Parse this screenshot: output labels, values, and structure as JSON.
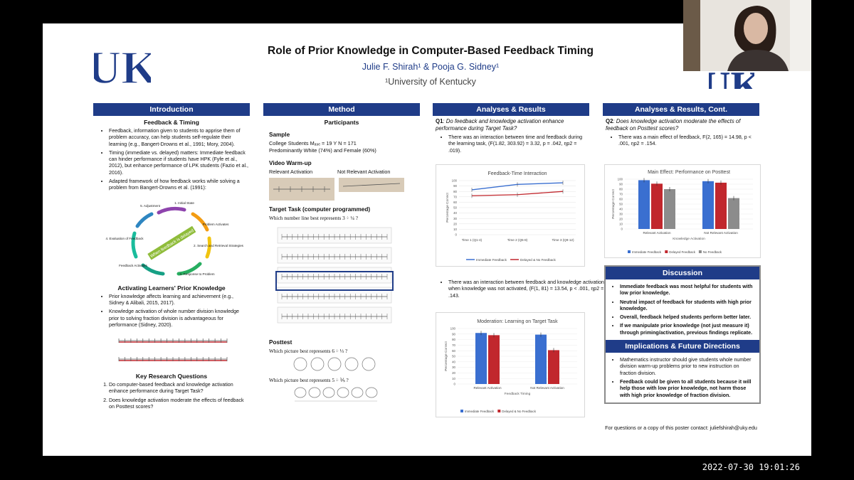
{
  "poster": {
    "title": "Role of Prior Knowledge in Computer-Based Feedback Timing",
    "authors": "Julie F. Shirah¹ & Pooja G. Sidney¹",
    "affiliation": "¹University of Kentucky",
    "logo_text": "UK"
  },
  "intro": {
    "header": "Introduction",
    "sub1": "Feedback & Timing",
    "bullets1": [
      "Feedback, information given to students to apprise them of problem accuracy, can help students self-regulate their learning (e.g., Bangert-Drowns et al., 1991; Mory, 2004).",
      "Timing (immediate vs. delayed) matters: Immediate feedback can hinder performance if students have HPK (Fyfe et al., 2012), but enhance performance of LPK students (Fazio et al., 2016).",
      "Adapted framework of how feedback works while solving a problem from Bangert-Drowns et al. (1991):"
    ],
    "cycle": {
      "steps": [
        "1. Initial State",
        "Problem Activates",
        "2. Search and Retrieval Strategies",
        "3. Response to Problem",
        "Feedback Activates",
        "4. Evaluation of Feedback",
        "5. Adjustment"
      ],
      "center": "When feedback is delayed"
    },
    "sub2": "Activating Learners' Prior Knowledge",
    "bullets2": [
      "Prior knowledge affects learning and achievement (e.g., Sidney & Alibali, 2015, 2017).",
      "Knowledge activation of whole number division knowledge prior to solving fraction division is advantageous for performance (Sidney, 2020)."
    ],
    "sub3": "Key Research Questions",
    "questions": [
      "Do computer-based feedback and knowledge activation enhance performance during Target Task?",
      "Does knowledge activation moderate the effects of feedback on Posttest scores?"
    ]
  },
  "method": {
    "header": "Method",
    "participants": "Participants",
    "sample_h": "Sample",
    "sample1": "College Students Mₐ₉ₑ = 19 Y N = 171",
    "sample2": "Predominantly White (74%) and Female (60%)",
    "video_h": "Video Warm-up",
    "relevant": "Relevant Activation",
    "not_relevant": "Not Relevant Activation",
    "target_h": "Target Task (computer programmed)",
    "target_q": "Which number line best represents 3 ÷ ¼ ?",
    "posttest_h": "Posttest",
    "post_q1": "Which picture best represents 6 ÷ ⅓ ?",
    "post_q2": "Which picture best represents 5 ÷ ⅕ ?"
  },
  "results": {
    "header": "Analyses & Results",
    "q1_label": "Q1",
    "q1": ": Do feedback and knowledge activation enhance performance during Target Task?",
    "r1": "There was an interaction between time and feedback during the learning task, (F(1.82, 303.92) = 3.32, p = .042, ηp2 = .019).",
    "r2": "There was an interaction between feedback and knowledge activation when knowledge was not activated, (F(1, 81) = 13.54, p < .001, ηp2 = .143."
  },
  "results2": {
    "header": "Analyses & Results, Cont.",
    "q2_label": "Q2",
    "q2": ": Does knowledge activation moderate the effects of feedback on Posttest scores?",
    "r1": "There was a main effect of feedback, F(2, 165) = 14.98, p < .001, ηp2 = .154.",
    "discussion_h": "Discussion",
    "discussion": [
      "Immediate feedback was most helpful for students with low prior knowledge.",
      "Neutral impact of feedback for students with high prior knowledge.",
      "Overall, feedback helped students perform better later.",
      "If we manipulate prior knowledge (not just measure it) through priming/activation, previous findings replicate."
    ],
    "implications_h": "Implications & Future Directions",
    "implications": [
      "Mathematics instructor should give students whole number division warm-up problems prior to new instruction on fraction division.",
      "Feedback could be given to all students because it will help those with low prior knowledge, not harm those with high prior knowledge of fraction division."
    ],
    "contact": "For questions or a copy of this poster contact: juliefshirah@uky.edu"
  },
  "colors": {
    "navy": "#1f3c88",
    "blue": "#3a6fd0",
    "red": "#c1272d",
    "gray": "#8c8c8c"
  },
  "timestamp": "2022-07-30  19:01:26",
  "chart_data": [
    {
      "type": "line",
      "title": "Feedback-Time Interaction",
      "ylabel": "Percentage Correct",
      "categories": [
        "Time 1 (Q1-4)",
        "Time 2 (Q5-8)",
        "Time 3 (Q9-12)"
      ],
      "ylim": [
        0,
        100
      ],
      "yticks": [
        0,
        10,
        20,
        30,
        40,
        50,
        60,
        70,
        80,
        90,
        100
      ],
      "series": [
        {
          "name": "Immediate Feedback",
          "values": [
            83,
            93,
            96
          ]
        },
        {
          "name": "Delayed & No Feedback",
          "values": [
            72,
            74,
            80
          ]
        }
      ]
    },
    {
      "type": "bar",
      "title": "Moderation: Learning on Target Task",
      "xlabel": "Feedback Timing",
      "ylabel": "Percentage Correct",
      "categories": [
        "Relevant Activation",
        "Not Relevant Activation"
      ],
      "ylim": [
        0,
        100
      ],
      "yticks": [
        0,
        10,
        20,
        30,
        40,
        50,
        60,
        70,
        80,
        90,
        100
      ],
      "series": [
        {
          "name": "Immediate Feedback",
          "values": [
            92,
            89
          ]
        },
        {
          "name": "Delayed & No Feedback",
          "values": [
            88,
            61
          ]
        }
      ]
    },
    {
      "type": "bar",
      "title": "Main Effect: Performance on Posttest",
      "xlabel": "Knowledge Activation",
      "ylabel": "Percentage Correct",
      "categories": [
        "Relevant Activation",
        "Not Relevant Activation"
      ],
      "ylim": [
        0,
        100
      ],
      "yticks": [
        0,
        10,
        20,
        30,
        40,
        50,
        60,
        70,
        80,
        90,
        100
      ],
      "series": [
        {
          "name": "Immediate Feedback",
          "values": [
            98,
            96
          ]
        },
        {
          "name": "Delayed Feedback",
          "values": [
            91,
            93
          ]
        },
        {
          "name": "No Feedback",
          "values": [
            80,
            62
          ]
        }
      ]
    }
  ]
}
